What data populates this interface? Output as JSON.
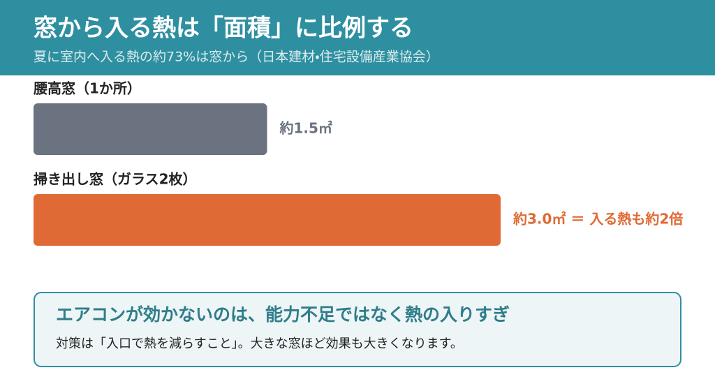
{
  "chart_data": {
    "type": "hbar",
    "title": "窓から入る熱は「面積」に比例する",
    "subtitle": "夏に室内へ入る熱の約73%は窓から（日本建材・住宅設備産業協会）",
    "categories": [
      "腰高窓（1か所）",
      "掃き出し窓（ガラス2枚）"
    ],
    "values": [
      1.5,
      3.0
    ],
    "value_labels": [
      "約1.5㎡",
      "約3.0㎡ ＝ 入る熱も約2倍"
    ],
    "colors": [
      "#6b7280",
      "#e06a35"
    ]
  },
  "note": {
    "title": "エアコンが効かないのは、能力不足ではなく熱の入りすぎ",
    "text": "対策は「入口で熱を減らすこと」。大きな窓ほど効果も大きくなります。"
  }
}
